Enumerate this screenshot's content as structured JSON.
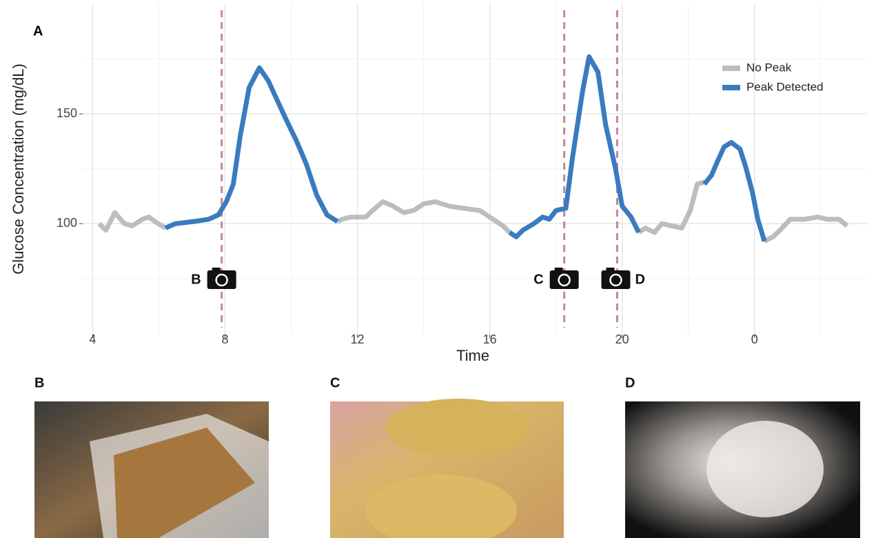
{
  "chart_data": {
    "type": "line",
    "panel_label": "A",
    "xlabel": "Time",
    "ylabel": "Glucose Concentration (mg/dL)",
    "xlim": [
      3.7,
      27.4
    ],
    "ylim": [
      49.5,
      200.3
    ],
    "xticks": [
      4,
      8,
      12,
      16,
      20,
      {
        "value": 24,
        "label": "0"
      }
    ],
    "minor_xticks": [
      6,
      10,
      14,
      18,
      22,
      26
    ],
    "yticks": [
      100,
      150
    ],
    "minor_yticks": [
      75,
      125,
      175
    ],
    "grid": true,
    "legend": "top-right",
    "series": [
      {
        "name": "No Peak",
        "color": "#bdbdbd",
        "x": [
          4.2,
          4.4,
          4.67,
          4.96,
          5.2,
          5.5,
          5.7,
          5.98,
          6.2,
          null,
          11.4,
          11.54,
          11.8,
          12.25,
          12.46,
          12.77,
          13.08,
          13.4,
          13.7,
          14.0,
          14.35,
          14.77,
          15.2,
          15.7,
          16.1,
          16.4,
          16.6,
          null,
          20.5,
          20.7,
          20.98,
          21.2,
          21.5,
          21.8,
          22.06,
          22.27,
          22.48,
          null,
          24.3,
          24.56,
          24.77,
          25.08,
          25.5,
          25.9,
          26.2,
          26.55,
          26.8
        ],
        "values": [
          100,
          97,
          105,
          100,
          99,
          102,
          103,
          100,
          98,
          null,
          101,
          102,
          103,
          103,
          106,
          110,
          108,
          105,
          106,
          109,
          110,
          108,
          107,
          106,
          102,
          99,
          96,
          null,
          96,
          98,
          96,
          100,
          99,
          98,
          106,
          118,
          119,
          null,
          92,
          94,
          97,
          102,
          102,
          103,
          102,
          102,
          99
        ]
      },
      {
        "name": "Peak Detected",
        "color": "#3a7bbf",
        "x": [
          6.2,
          6.5,
          7.06,
          7.5,
          7.8,
          8.04,
          8.25,
          8.46,
          8.73,
          9.04,
          9.31,
          9.52,
          9.83,
          10.15,
          10.46,
          10.77,
          11.08,
          11.4,
          null,
          16.6,
          16.8,
          17.0,
          17.33,
          17.6,
          17.8,
          18.0,
          18.3,
          18.5,
          18.8,
          19.0,
          19.27,
          19.5,
          19.8,
          20.0,
          20.27,
          20.5,
          null,
          22.48,
          22.7,
          22.9,
          23.08,
          23.3,
          23.56,
          23.73,
          23.94,
          24.1,
          24.3
        ],
        "values": [
          98,
          100,
          101,
          102,
          104,
          110,
          118,
          140,
          162,
          171,
          165,
          158,
          148,
          138,
          127,
          113,
          104,
          101,
          null,
          96,
          94,
          97,
          100,
          103,
          102,
          106,
          107,
          130,
          160,
          176,
          169,
          145,
          125,
          108,
          103,
          96,
          null,
          118,
          122,
          129,
          135,
          137,
          134,
          126,
          114,
          102,
          92
        ]
      }
    ],
    "meals": [
      {
        "x": 7.9,
        "label": "B",
        "color": "#c48598"
      },
      {
        "x": 18.25,
        "label": "C",
        "color": "#c48598"
      },
      {
        "x": 19.85,
        "label": "D",
        "color": "#c48598"
      }
    ],
    "photos": [
      {
        "label": "B"
      },
      {
        "label": "C"
      },
      {
        "label": "D"
      }
    ]
  }
}
